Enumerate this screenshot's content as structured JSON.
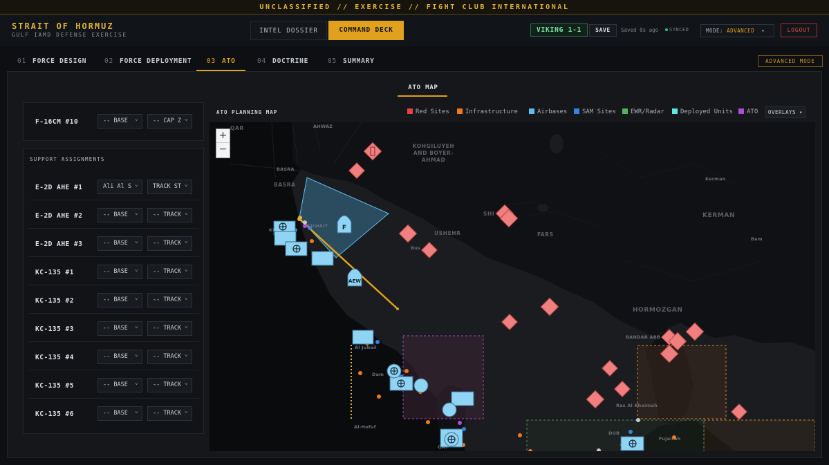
{
  "banner": {
    "text": "UNCLASSIFIED // EXERCISE // FIGHT CLUB INTERNATIONAL"
  },
  "brand": {
    "title": "STRAIT OF HORMUZ",
    "subtitle": "GULF IAMD DEFENSE EXERCISE"
  },
  "view_toggle": {
    "intel": "INTEL DOSSIER",
    "command": "COMMAND DECK"
  },
  "header": {
    "callsign": "VIKING 1-1",
    "save_label": "SAVE",
    "saved_status": "Saved 0s ago",
    "sync_status": "SYNCED",
    "mode_prefix": "MODE: ",
    "mode_value": "ADVANCED",
    "mode_caret": "▾",
    "logout_label": "LOGOUT"
  },
  "tabs": [
    {
      "num": "01",
      "label": "FORCE DESIGN"
    },
    {
      "num": "02",
      "label": "FORCE DEPLOYMENT"
    },
    {
      "num": "03",
      "label": "ATO",
      "active": true
    },
    {
      "num": "04",
      "label": "DOCTRINE"
    },
    {
      "num": "05",
      "label": "SUMMARY"
    }
  ],
  "advanced_badge": "ADVANCED MODE",
  "subtab": "ATO MAP",
  "top_row": {
    "name": "F-16CM #10",
    "sel1": "-- BASE",
    "sel2": "-- CAP Z"
  },
  "support": {
    "label": "SUPPORT ASSIGNMENTS",
    "rows": [
      {
        "name": "E-2D AHE #1",
        "sel1": "Ali Al S",
        "sel2": "TRACK ST"
      },
      {
        "name": "E-2D AHE #2",
        "sel1": "-- BASE",
        "sel2": "-- TRACK"
      },
      {
        "name": "E-2D AHE #3",
        "sel1": "-- BASE",
        "sel2": "-- TRACK"
      },
      {
        "name": "KC-135 #1",
        "sel1": "-- BASE",
        "sel2": "-- TRACK"
      },
      {
        "name": "KC-135 #2",
        "sel1": "-- BASE",
        "sel2": "-- TRACK"
      },
      {
        "name": "KC-135 #3",
        "sel1": "-- BASE",
        "sel2": "-- TRACK"
      },
      {
        "name": "KC-135 #4",
        "sel1": "-- BASE",
        "sel2": "-- TRACK"
      },
      {
        "name": "KC-135 #5",
        "sel1": "-- BASE",
        "sel2": "-- TRACK"
      },
      {
        "name": "KC-135 #6",
        "sel1": "-- BASE",
        "sel2": "-- TRACK"
      }
    ]
  },
  "map": {
    "title": "ATO PLANNING MAP",
    "legend": [
      {
        "label": "Red Sites",
        "color": "#e04545"
      },
      {
        "label": "Infrastructure",
        "color": "#f07a1a"
      },
      {
        "label": "Airbases",
        "color": "#57c0f0"
      },
      {
        "label": "SAM Sites",
        "color": "#3a82e0"
      },
      {
        "label": "EWR/Radar",
        "color": "#55b25a"
      },
      {
        "label": "Deployed Units",
        "color": "#5ee8e8"
      },
      {
        "label": "ATO",
        "color": "#b04ad8"
      }
    ],
    "overlays_label": "OVERLAYS ▾",
    "zoom_in": "+",
    "zoom_out": "−",
    "labels": {
      "qar": "QAR",
      "ahwaz": "AHWAZ",
      "kohgiluyeh": "KOHGILUYEH AND BOYER- AHMAD",
      "basra_small": "BASRA",
      "basra": "BASRA",
      "kerman_small": "Kerman",
      "kerman": "KERMAN",
      "shiraz": "SHI",
      "fars": "FARS",
      "bushehr": "USHEHR",
      "bushehr_small": "Bus",
      "bam": "Bam",
      "hormozgan": "HORMOZGAN",
      "bandar_abbas": "BANDAR ABB",
      "kuwait": "KUWAIT",
      "ras_al_khaimah": "Ras Al Khaimah",
      "dubai": "DUB",
      "fujairah": "Fujairah",
      "al_jubail": "Al Jubail",
      "dammam": "Dam",
      "qatar": "QAT",
      "al_hofuf": "Al-Hofuf",
      "ku": "KU"
    },
    "aew_label": "AEW",
    "fighter_label": "F"
  }
}
